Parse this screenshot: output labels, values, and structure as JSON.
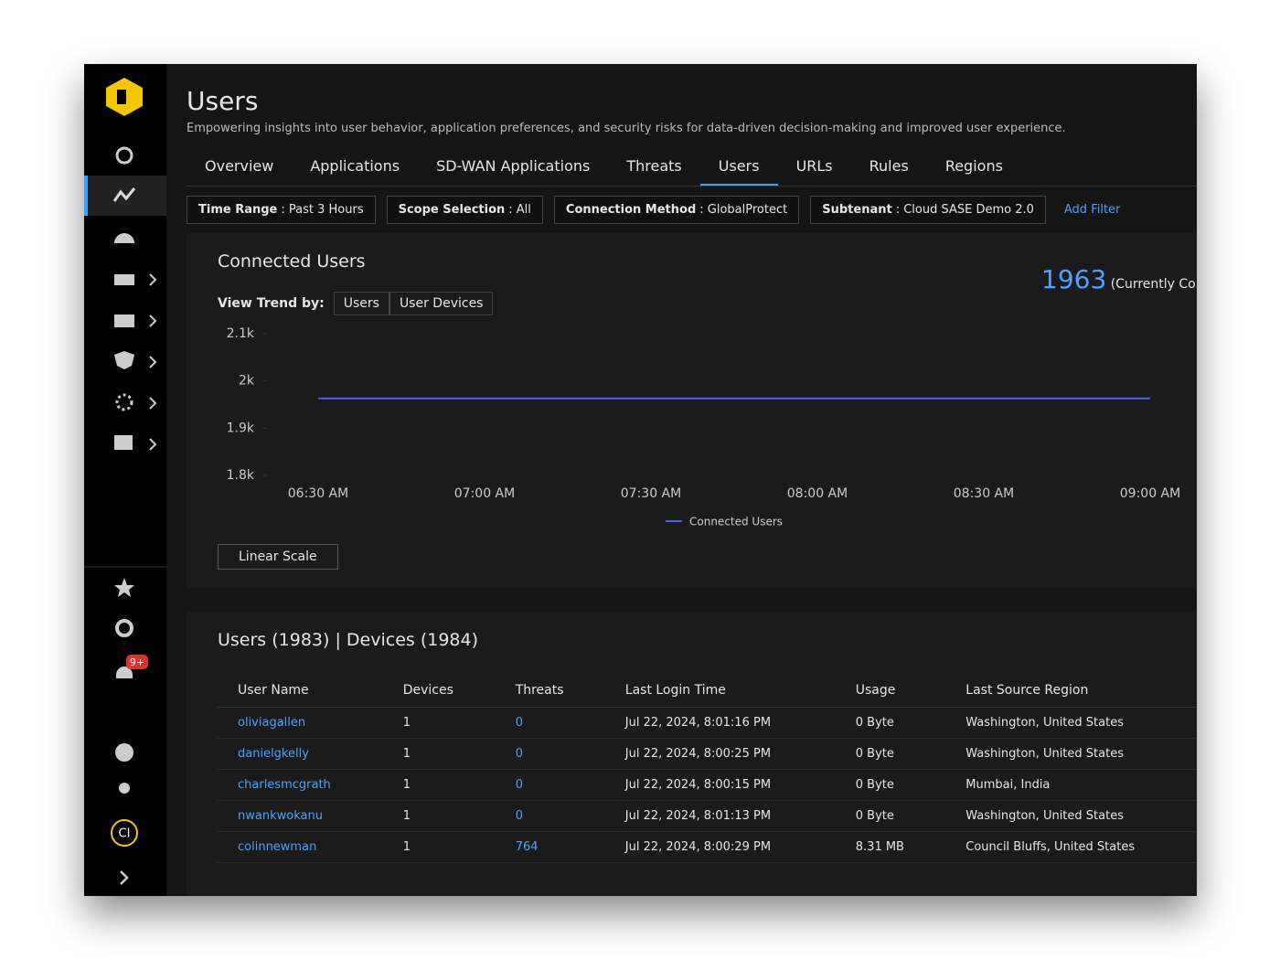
{
  "header": {
    "title": "Users",
    "subtitle": "Empowering insights into user behavior, application preferences, and security risks for data-driven decision-making and improved user experience."
  },
  "tabs": [
    "Overview",
    "Applications",
    "SD-WAN Applications",
    "Threats",
    "Users",
    "URLs",
    "Rules",
    "Regions"
  ],
  "active_tab": 4,
  "filters": [
    {
      "label": "Time Range",
      "value": ": Past 3 Hours"
    },
    {
      "label": "Scope Selection",
      "value": ": All"
    },
    {
      "label": "Connection Method",
      "value": ": GlobalProtect"
    },
    {
      "label": "Subtenant",
      "value": ": Cloud SASE Demo 2.0"
    }
  ],
  "add_filter": "Add Filter",
  "sidebar": {
    "badge": "9+",
    "avatar": "CI"
  },
  "connected": {
    "title": "Connected Users",
    "count": "1963",
    "count_note": "(Currently Connected)",
    "trend_label": "View Trend by:",
    "trend_options": [
      "Users",
      "User Devices"
    ],
    "scale": "Linear Scale"
  },
  "chart_data": {
    "type": "line",
    "categories": [
      "06:30 AM",
      "07:00 AM",
      "07:30 AM",
      "08:00 AM",
      "08:30 AM",
      "09:00 AM"
    ],
    "series": [
      {
        "name": "Connected Users",
        "color": "#4f5ff2",
        "values": [
          1963,
          1963,
          1963,
          1963,
          1963,
          1963
        ]
      }
    ],
    "ylim": [
      1800,
      2100
    ],
    "yticks": [
      {
        "value": 1800,
        "label": "1.8k"
      },
      {
        "value": 1900,
        "label": "1.9k"
      },
      {
        "value": 2000,
        "label": "2k"
      },
      {
        "value": 2100,
        "label": "2.1k"
      }
    ],
    "grid": false,
    "legend": "bottom"
  },
  "table": {
    "title": "Users (1983) | Devices (1984)",
    "columns": [
      "User Name",
      "Devices",
      "Threats",
      "Last Login Time",
      "Usage",
      "Last Source Region"
    ],
    "rows": [
      [
        "oliviagallen",
        "1",
        "0",
        "Jul 22, 2024, 8:01:16 PM",
        "0 Byte",
        "Washington, United States"
      ],
      [
        "danielgkelly",
        "1",
        "0",
        "Jul 22, 2024, 8:00:25 PM",
        "0 Byte",
        "Washington, United States"
      ],
      [
        "charlesmcgrath",
        "1",
        "0",
        "Jul 22, 2024, 8:00:15 PM",
        "0 Byte",
        "Mumbai, India"
      ],
      [
        "nwankwokanu",
        "1",
        "0",
        "Jul 22, 2024, 8:01:13 PM",
        "0 Byte",
        "Washington, United States"
      ],
      [
        "colinnewman",
        "1",
        "764",
        "Jul 22, 2024, 8:00:29 PM",
        "8.31 MB",
        "Council Bluffs, United States"
      ]
    ]
  }
}
